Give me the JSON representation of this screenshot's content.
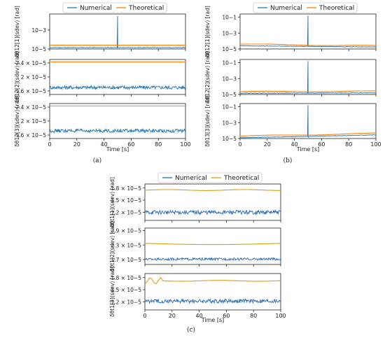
{
  "figure": {
    "panels": [
      {
        "key": "a",
        "caption": "(a)",
        "legend": [
          "Numerical",
          "Theoretical"
        ],
        "xlabel": "Time [s]"
      },
      {
        "key": "b",
        "caption": "(b)",
        "legend": [
          "Numerical",
          "Theoretical"
        ],
        "xlabel": "Time [s]"
      },
      {
        "key": "c",
        "caption": "(c)",
        "legend": [
          "Numerical",
          "Theoretical"
        ],
        "xlabel": "Time [s]"
      }
    ],
    "colors": {
      "numerical": "#1f77b4",
      "theoretical_a": "#ff7f0e",
      "theoretical_b": "#ff7f0e",
      "theoretical_c": "#d4a017",
      "numerical_c": "#2a6fb8"
    }
  },
  "chart_data": [
    {
      "panel": "a",
      "subplot": 1,
      "type": "line",
      "scale": "log",
      "ylabel": "δθ12[1](sdev) [rad]",
      "xlim": [
        0,
        100
      ],
      "ylim_exp": [
        -5,
        -1.3
      ],
      "yticks": [
        {
          "value": -5,
          "label": "10−5"
        },
        {
          "value": -3,
          "label": "10−3"
        }
      ],
      "xticks": [],
      "series": [
        {
          "name": "Numerical",
          "baseline_exp": -4.85,
          "spike": {
            "x": 50,
            "peak_exp": -1.5
          }
        },
        {
          "name": "Theoretical",
          "baseline_exp": -4.6
        }
      ]
    },
    {
      "panel": "a",
      "subplot": 2,
      "type": "line",
      "scale": "linear",
      "ylabel": "δθ12[2](sdev) [rad]",
      "xlim": [
        0,
        100
      ],
      "ylim": [
        1.5e-05,
        2.5e-05
      ],
      "yticks": [
        {
          "value": 2.4e-05,
          "label": "2.4 × 10−5"
        },
        {
          "value": 2e-05,
          "label": "2 × 10−5"
        },
        {
          "value": 1.6e-05,
          "label": "1.6 × 10−5"
        }
      ],
      "xticks": [],
      "series": [
        {
          "name": "Numerical",
          "mean": 1.7e-05,
          "noise": 5e-07
        },
        {
          "name": "Theoretical",
          "constant": 2.43e-05
        }
      ]
    },
    {
      "panel": "a",
      "subplot": 3,
      "type": "line",
      "scale": "linear",
      "ylabel": "δθ12[3](sdev) [rad]",
      "xlim": [
        0,
        100
      ],
      "ylim": [
        1.5e-05,
        2.5e-05
      ],
      "yticks": [
        {
          "value": 2.4e-05,
          "label": "2.4 × 10−5"
        },
        {
          "value": 2e-05,
          "label": "2 × 10−5"
        },
        {
          "value": 1.6e-05,
          "label": "1.6 × 10−5"
        }
      ],
      "xticks": [
        0,
        20,
        40,
        60,
        80,
        100
      ],
      "series": [
        {
          "name": "Numerical",
          "mean": 1.72e-05,
          "noise": 5e-07
        },
        {
          "name": "Theoretical",
          "constant": 2.43e-05
        }
      ]
    },
    {
      "panel": "b",
      "subplot": 1,
      "type": "line",
      "scale": "log",
      "ylabel": "δθ12[1](sdev) [rad]",
      "xlim": [
        0,
        100
      ],
      "ylim_exp": [
        -5,
        -0.6
      ],
      "yticks": [
        {
          "value": -1,
          "label": "10−1"
        },
        {
          "value": -3,
          "label": "10−3"
        },
        {
          "value": -5,
          "label": "10−5"
        }
      ],
      "xticks": [],
      "series": [
        {
          "name": "Numerical",
          "start_exp": -4.6,
          "end_exp": -4.75,
          "spike": {
            "x": 50,
            "peak_exp": -0.8
          }
        },
        {
          "name": "Theoretical",
          "start_exp": -4.4,
          "end_exp": -4.6
        }
      ]
    },
    {
      "panel": "b",
      "subplot": 2,
      "type": "line",
      "scale": "log",
      "ylabel": "δθ12[2](sdev) [rad]",
      "xlim": [
        0,
        100
      ],
      "ylim_exp": [
        -5,
        -0.6
      ],
      "yticks": [
        {
          "value": -1,
          "label": "10−1"
        },
        {
          "value": -3,
          "label": "10−3"
        },
        {
          "value": -5,
          "label": "10−5"
        }
      ],
      "xticks": [],
      "series": [
        {
          "name": "Numerical",
          "start_exp": -4.85,
          "end_exp": -4.8,
          "spike": {
            "x": 50,
            "peak_exp": -0.8
          }
        },
        {
          "name": "Theoretical",
          "start_exp": -4.65,
          "end_exp": -4.6
        }
      ]
    },
    {
      "panel": "b",
      "subplot": 3,
      "type": "line",
      "scale": "log",
      "ylabel": "δθ13[3](sdev) [rad]",
      "xlim": [
        0,
        100
      ],
      "ylim_exp": [
        -5,
        -0.6
      ],
      "yticks": [
        {
          "value": -1,
          "label": "10−1"
        },
        {
          "value": -3,
          "label": "10−3"
        },
        {
          "value": -5,
          "label": "10−5"
        }
      ],
      "xticks": [
        0,
        20,
        40,
        60,
        80,
        100
      ],
      "series": [
        {
          "name": "Numerical",
          "start_exp": -4.9,
          "end_exp": -4.55,
          "spike": {
            "x": 50,
            "peak_exp": -0.8
          }
        },
        {
          "name": "Theoretical",
          "start_exp": -4.7,
          "end_exp": -4.35
        }
      ]
    },
    {
      "panel": "c",
      "subplot": 1,
      "type": "line",
      "scale": "linear",
      "ylabel": "δθt1[1](sdev) [rad]",
      "xlim": [
        0,
        100
      ],
      "ylim": [
        1e-05,
        1.9e-05
      ],
      "yticks": [
        {
          "value": 1.8e-05,
          "label": "1.8 × 10−5"
        },
        {
          "value": 1.5e-05,
          "label": "1.5 × 10−5"
        },
        {
          "value": 1.2e-05,
          "label": "1.2 × 10−5"
        }
      ],
      "xticks": [],
      "series": [
        {
          "name": "Numerical",
          "mean": 1.2e-05,
          "noise": 5e-07
        },
        {
          "name": "Theoretical",
          "constant": 1.75e-05
        }
      ]
    },
    {
      "panel": "c",
      "subplot": 2,
      "type": "line",
      "scale": "linear",
      "ylabel": "δθt1[2](sdev) [rad]",
      "xlim": [
        0,
        100
      ],
      "ylim": [
        1.5e-05,
        3e-05
      ],
      "yticks": [
        {
          "value": 2.9e-05,
          "label": "2.9 × 10−5"
        },
        {
          "value": 2.3e-05,
          "label": "2.3 × 10−5"
        },
        {
          "value": 1.7e-05,
          "label": "1.7 × 10−5"
        }
      ],
      "xticks": [],
      "series": [
        {
          "name": "Numerical",
          "mean": 1.72e-05,
          "noise": 5e-07
        },
        {
          "name": "Theoretical",
          "constant": 2.35e-05
        }
      ]
    },
    {
      "panel": "c",
      "subplot": 3,
      "type": "line",
      "scale": "linear",
      "ylabel": "δθt1[3](sdev) [rad]",
      "xlim": [
        0,
        100
      ],
      "ylim": [
        1e-05,
        1.9e-05
      ],
      "yticks": [
        {
          "value": 1.8e-05,
          "label": "1.8 × 10−5"
        },
        {
          "value": 1.5e-05,
          "label": "1.5 × 10−5"
        },
        {
          "value": 1.2e-05,
          "label": "1.2 × 10−5"
        }
      ],
      "xticks": [
        0,
        20,
        40,
        60,
        80,
        100
      ],
      "series": [
        {
          "name": "Numerical",
          "mean": 1.22e-05,
          "noise": 5e-07
        },
        {
          "name": "Theoretical",
          "constant": 1.72e-05
        }
      ]
    }
  ]
}
